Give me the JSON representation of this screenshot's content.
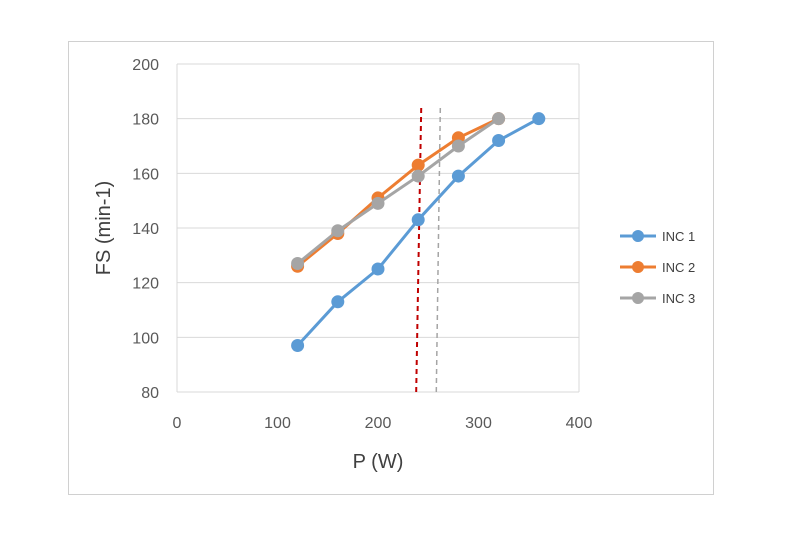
{
  "chart_data": {
    "type": "line",
    "title": "",
    "xlabel": "P (W)",
    "ylabel": "FS (min-1)",
    "xlim": [
      0,
      400
    ],
    "ylim": [
      80,
      200
    ],
    "xticks": [
      0,
      100,
      200,
      300,
      400
    ],
    "yticks": [
      80,
      100,
      120,
      140,
      160,
      180,
      200
    ],
    "grid": "horizontal",
    "legend_position": "right",
    "series": [
      {
        "name": "INC 1",
        "color": "#5b9bd5",
        "x": [
          120,
          160,
          200,
          240,
          280,
          320,
          360
        ],
        "y": [
          97,
          113,
          125,
          143,
          159,
          172,
          180
        ]
      },
      {
        "name": "INC 2",
        "color": "#ed7d31",
        "x": [
          120,
          160,
          200,
          240,
          280,
          320
        ],
        "y": [
          126,
          138,
          151,
          163,
          173,
          180
        ]
      },
      {
        "name": "INC 3",
        "color": "#a5a5a5",
        "x": [
          120,
          160,
          200,
          240,
          280,
          320
        ],
        "y": [
          127,
          139,
          149,
          159,
          170,
          180
        ]
      }
    ],
    "reference_lines": [
      {
        "name": "dashed-red",
        "color": "#c00000",
        "x_bottom": 238,
        "x_top": 243
      },
      {
        "name": "dashed-gray",
        "color": "#a5a5a5",
        "x_bottom": 258,
        "x_top": 262
      }
    ]
  }
}
